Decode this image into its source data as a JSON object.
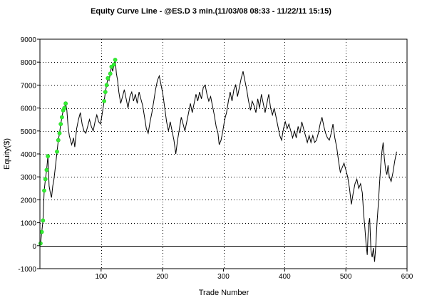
{
  "chart_data": {
    "type": "line",
    "title": "Equity Curve Line - @ES.D 3 min.(11/03/08 08:33 - 11/22/11 15:15)",
    "xlabel": "Trade Number",
    "ylabel": "Equity($)",
    "xlim": [
      0,
      600
    ],
    "ylim": [
      -1000,
      9000
    ],
    "xticks": [
      "100",
      "200",
      "300",
      "400",
      "500",
      "600"
    ],
    "yticks": [
      "-1000",
      "0",
      "1000",
      "2000",
      "3000",
      "4000",
      "5000",
      "6000",
      "7000",
      "8000",
      "9000"
    ],
    "grid": true,
    "colors": {
      "line": "#000000",
      "highs": "#33ee33",
      "grid": "#000000"
    },
    "series": [
      {
        "values": [
          [
            1,
            100
          ],
          [
            3,
            600
          ],
          [
            5,
            1100
          ],
          [
            7,
            2400
          ],
          [
            9,
            2900
          ],
          [
            11,
            3300
          ],
          [
            13,
            3900
          ],
          [
            15,
            2600
          ],
          [
            17,
            2300
          ],
          [
            19,
            2100
          ],
          [
            21,
            2600
          ],
          [
            23,
            2900
          ],
          [
            26,
            3600
          ],
          [
            28,
            4100
          ],
          [
            30,
            4600
          ],
          [
            32,
            4900
          ],
          [
            34,
            5300
          ],
          [
            36,
            5600
          ],
          [
            38,
            5900
          ],
          [
            40,
            6000
          ],
          [
            42,
            6200
          ],
          [
            44,
            5900
          ],
          [
            46,
            5200
          ],
          [
            48,
            4800
          ],
          [
            50,
            4600
          ],
          [
            52,
            4400
          ],
          [
            55,
            4700
          ],
          [
            57,
            4300
          ],
          [
            60,
            5100
          ],
          [
            63,
            5500
          ],
          [
            66,
            5800
          ],
          [
            69,
            5300
          ],
          [
            72,
            5000
          ],
          [
            75,
            4900
          ],
          [
            78,
            5200
          ],
          [
            81,
            5500
          ],
          [
            84,
            5200
          ],
          [
            87,
            5000
          ],
          [
            90,
            5400
          ],
          [
            93,
            5700
          ],
          [
            96,
            5400
          ],
          [
            99,
            5300
          ],
          [
            102,
            5800
          ],
          [
            105,
            6300
          ],
          [
            107,
            6700
          ],
          [
            109,
            7000
          ],
          [
            111,
            7300
          ],
          [
            113,
            7200
          ],
          [
            115,
            7500
          ],
          [
            117,
            7800
          ],
          [
            119,
            7600
          ],
          [
            121,
            7900
          ],
          [
            123,
            8100
          ],
          [
            125,
            7500
          ],
          [
            127,
            7200
          ],
          [
            129,
            6700
          ],
          [
            132,
            6200
          ],
          [
            135,
            6500
          ],
          [
            138,
            6800
          ],
          [
            141,
            6400
          ],
          [
            144,
            6000
          ],
          [
            147,
            6500
          ],
          [
            150,
            6700
          ],
          [
            153,
            6300
          ],
          [
            156,
            6600
          ],
          [
            159,
            6200
          ],
          [
            162,
            6700
          ],
          [
            165,
            6400
          ],
          [
            168,
            6100
          ],
          [
            171,
            5600
          ],
          [
            174,
            5100
          ],
          [
            177,
            4900
          ],
          [
            180,
            5400
          ],
          [
            183,
            5800
          ],
          [
            186,
            6300
          ],
          [
            189,
            6800
          ],
          [
            192,
            7200
          ],
          [
            195,
            7400
          ],
          [
            198,
            7000
          ],
          [
            201,
            6600
          ],
          [
            204,
            6000
          ],
          [
            207,
            5400
          ],
          [
            210,
            5000
          ],
          [
            213,
            5400
          ],
          [
            216,
            5000
          ],
          [
            219,
            4600
          ],
          [
            222,
            4000
          ],
          [
            225,
            4600
          ],
          [
            228,
            5100
          ],
          [
            231,
            5600
          ],
          [
            234,
            5300
          ],
          [
            237,
            5000
          ],
          [
            240,
            5400
          ],
          [
            243,
            5800
          ],
          [
            246,
            6200
          ],
          [
            249,
            5800
          ],
          [
            252,
            6200
          ],
          [
            255,
            6600
          ],
          [
            258,
            6300
          ],
          [
            261,
            6700
          ],
          [
            264,
            6400
          ],
          [
            267,
            6900
          ],
          [
            270,
            7000
          ],
          [
            273,
            6600
          ],
          [
            276,
            6300
          ],
          [
            279,
            6500
          ],
          [
            282,
            6100
          ],
          [
            285,
            5700
          ],
          [
            288,
            5200
          ],
          [
            291,
            4900
          ],
          [
            293,
            4400
          ],
          [
            296,
            4600
          ],
          [
            299,
            5000
          ],
          [
            302,
            5500
          ],
          [
            305,
            5800
          ],
          [
            308,
            6300
          ],
          [
            311,
            6700
          ],
          [
            314,
            6300
          ],
          [
            317,
            6800
          ],
          [
            320,
            7000
          ],
          [
            323,
            6500
          ],
          [
            326,
            6900
          ],
          [
            329,
            7300
          ],
          [
            332,
            7600
          ],
          [
            335,
            7200
          ],
          [
            338,
            6800
          ],
          [
            341,
            6300
          ],
          [
            344,
            5900
          ],
          [
            347,
            6300
          ],
          [
            350,
            6100
          ],
          [
            353,
            5800
          ],
          [
            356,
            6400
          ],
          [
            359,
            6000
          ],
          [
            362,
            6600
          ],
          [
            365,
            6200
          ],
          [
            368,
            5800
          ],
          [
            371,
            6200
          ],
          [
            374,
            6600
          ],
          [
            377,
            6000
          ],
          [
            380,
            5700
          ],
          [
            383,
            6000
          ],
          [
            386,
            5600
          ],
          [
            389,
            5200
          ],
          [
            392,
            4800
          ],
          [
            395,
            4600
          ],
          [
            398,
            5100
          ],
          [
            401,
            5400
          ],
          [
            404,
            5100
          ],
          [
            407,
            5300
          ],
          [
            410,
            5000
          ],
          [
            413,
            4700
          ],
          [
            416,
            5000
          ],
          [
            419,
            4700
          ],
          [
            422,
            5200
          ],
          [
            425,
            4900
          ],
          [
            428,
            5400
          ],
          [
            431,
            5100
          ],
          [
            434,
            4800
          ],
          [
            437,
            4500
          ],
          [
            440,
            4800
          ],
          [
            443,
            4500
          ],
          [
            446,
            4800
          ],
          [
            449,
            4500
          ],
          [
            452,
            4600
          ],
          [
            455,
            4900
          ],
          [
            458,
            5300
          ],
          [
            461,
            5600
          ],
          [
            464,
            5200
          ],
          [
            467,
            4900
          ],
          [
            470,
            4700
          ],
          [
            473,
            4600
          ],
          [
            476,
            4900
          ],
          [
            479,
            5300
          ],
          [
            482,
            4700
          ],
          [
            485,
            4300
          ],
          [
            488,
            3700
          ],
          [
            491,
            3200
          ],
          [
            494,
            3400
          ],
          [
            497,
            3600
          ],
          [
            500,
            3300
          ],
          [
            503,
            3000
          ],
          [
            506,
            2500
          ],
          [
            509,
            1800
          ],
          [
            512,
            2300
          ],
          [
            515,
            2700
          ],
          [
            518,
            2900
          ],
          [
            521,
            2500
          ],
          [
            524,
            2700
          ],
          [
            527,
            2300
          ],
          [
            529,
            1400
          ],
          [
            531,
            800
          ],
          [
            533,
            100
          ],
          [
            535,
            -400
          ],
          [
            537,
            900
          ],
          [
            539,
            1200
          ],
          [
            541,
            -200
          ],
          [
            543,
            -500
          ],
          [
            545,
            -100
          ],
          [
            547,
            -700
          ],
          [
            549,
            0
          ],
          [
            551,
            1000
          ],
          [
            553,
            1800
          ],
          [
            555,
            2700
          ],
          [
            557,
            3500
          ],
          [
            559,
            4100
          ],
          [
            561,
            4500
          ],
          [
            563,
            3800
          ],
          [
            565,
            3300
          ],
          [
            567,
            3100
          ],
          [
            569,
            3500
          ],
          [
            571,
            3000
          ],
          [
            574,
            2800
          ],
          [
            577,
            3200
          ],
          [
            580,
            3700
          ],
          [
            583,
            4100
          ]
        ]
      }
    ]
  }
}
